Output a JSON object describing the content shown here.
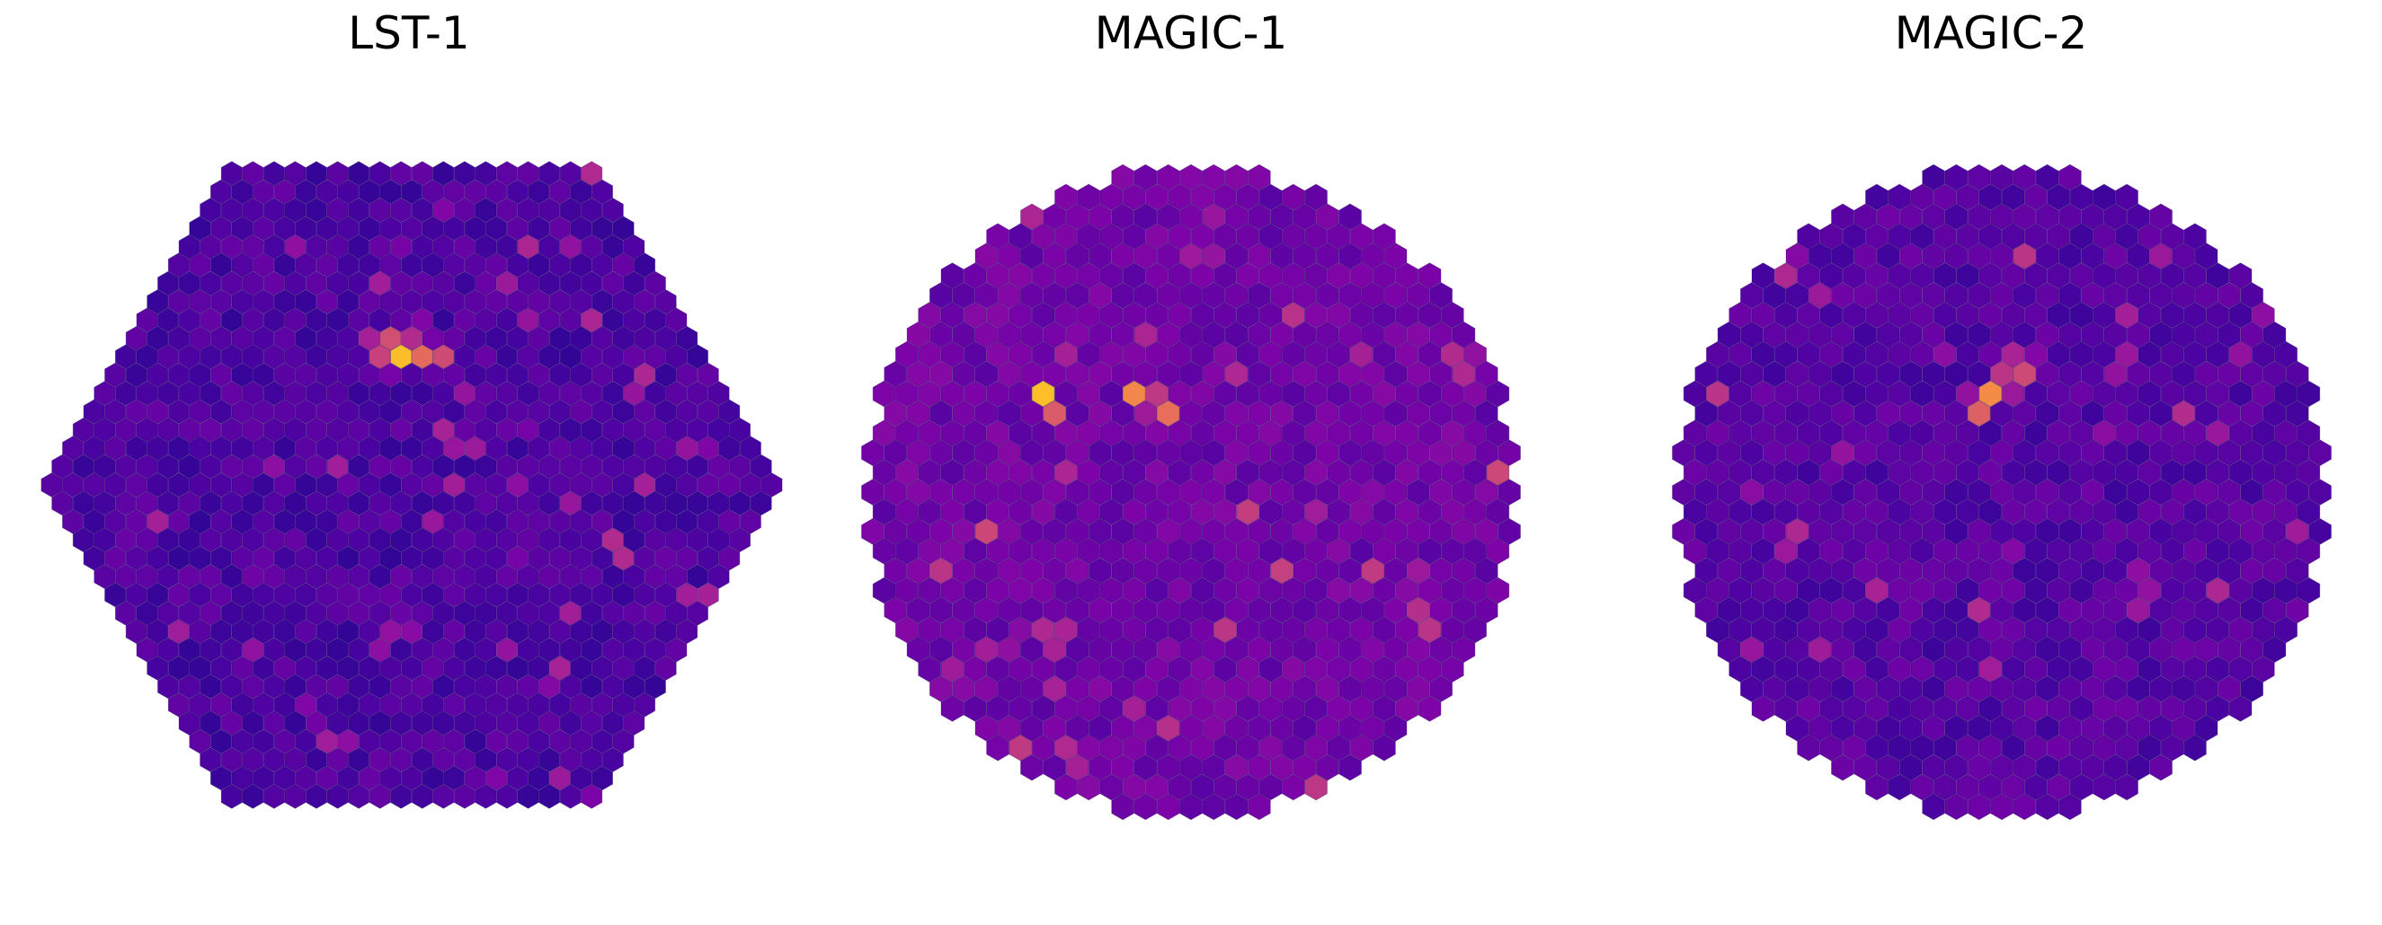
{
  "chart_data": [
    {
      "type": "heatmap",
      "title": "LST-1",
      "camera_shape": "hexagonal",
      "colormap": "plasma",
      "axes_visible": false,
      "background_level": 0.14,
      "hotspots": [
        {
          "row": -7.6,
          "col": -1.4,
          "level": 0.95
        },
        {
          "row": -7.0,
          "col": -0.4,
          "level": 0.88
        },
        {
          "row": -7.3,
          "col": 0.6,
          "level": 0.75
        },
        {
          "row": -6.7,
          "col": 1.4,
          "level": 0.62
        },
        {
          "row": -8.4,
          "col": 0.0,
          "level": 0.55
        }
      ]
    },
    {
      "type": "heatmap",
      "title": "MAGIC-1",
      "camera_shape": "circular",
      "colormap": "plasma",
      "axes_visible": false,
      "background_level": 0.22,
      "hotspots": [
        {
          "row": -4.8,
          "col": -6.6,
          "level": 0.95
        },
        {
          "row": -5.2,
          "col": -2.6,
          "level": 0.78
        },
        {
          "row": -4.6,
          "col": -1.8,
          "level": 0.72
        },
        {
          "row": -3.9,
          "col": -1.2,
          "level": 0.7
        },
        {
          "row": -4.2,
          "col": -6.0,
          "level": 0.62
        }
      ]
    },
    {
      "type": "heatmap",
      "title": "MAGIC-2",
      "camera_shape": "circular",
      "colormap": "plasma",
      "axes_visible": false,
      "background_level": 0.16,
      "hotspots": [
        {
          "row": -4.5,
          "col": -0.9,
          "level": 0.95
        },
        {
          "row": -5.0,
          "col": -0.3,
          "level": 0.78
        },
        {
          "row": -5.6,
          "col": 0.3,
          "level": 0.7
        },
        {
          "row": -6.2,
          "col": 0.7,
          "level": 0.65
        },
        {
          "row": -6.8,
          "col": 0.9,
          "level": 0.55
        }
      ]
    }
  ]
}
